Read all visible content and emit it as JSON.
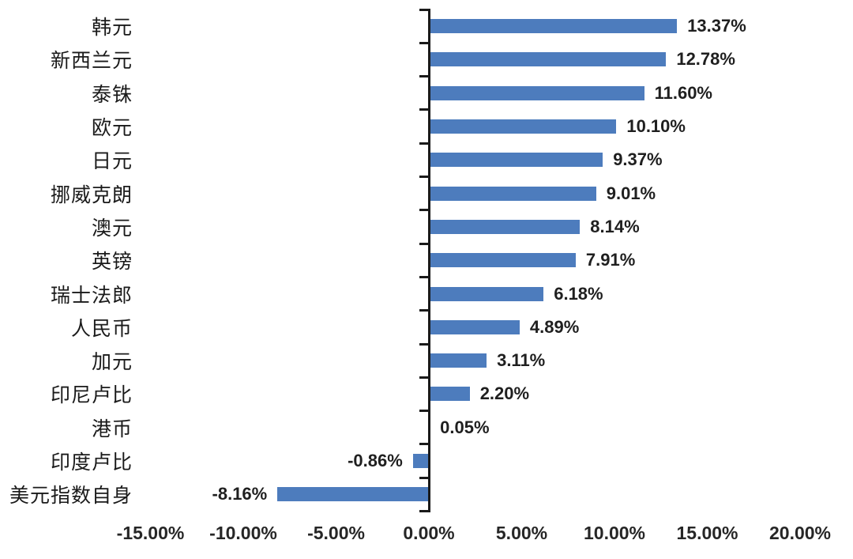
{
  "chart_data": {
    "type": "bar",
    "orientation": "horizontal",
    "title": "",
    "xlabel": "",
    "ylabel": "",
    "xlim": [
      -15,
      20
    ],
    "grid": false,
    "legend": false,
    "categories": [
      "韩元",
      "新西兰元",
      "泰铢",
      "欧元",
      "日元",
      "挪威克朗",
      "澳元",
      "英镑",
      "瑞士法郎",
      "人民币",
      "加元",
      "印尼卢比",
      "港币",
      "印度卢比",
      "美元指数自身"
    ],
    "values": [
      13.37,
      12.78,
      11.6,
      10.1,
      9.37,
      9.01,
      8.14,
      7.91,
      6.18,
      4.89,
      3.11,
      2.2,
      0.05,
      -0.86,
      -8.16
    ],
    "value_labels": [
      "13.37%",
      "12.78%",
      "11.60%",
      "10.10%",
      "9.37%",
      "9.01%",
      "8.14%",
      "7.91%",
      "6.18%",
      "4.89%",
      "3.11%",
      "2.20%",
      "0.05%",
      "-0.86%",
      "-8.16%"
    ],
    "x_ticks": [
      {
        "label": "-15.00%",
        "value": -15
      },
      {
        "label": "-10.00%",
        "value": -10
      },
      {
        "label": "-5.00%",
        "value": -5
      },
      {
        "label": "0.00%",
        "value": 0
      },
      {
        "label": "5.00%",
        "value": 5
      },
      {
        "label": "10.00%",
        "value": 10
      },
      {
        "label": "15.00%",
        "value": 15
      },
      {
        "label": "20.00%",
        "value": 20
      }
    ],
    "colors": {
      "bar": "#4D7CBD",
      "axis": "#1a1a1a",
      "value_text": "#1f1f1f",
      "category_text": "#1a1a1a",
      "tick_text": "#262626",
      "background": "#ffffff"
    }
  }
}
